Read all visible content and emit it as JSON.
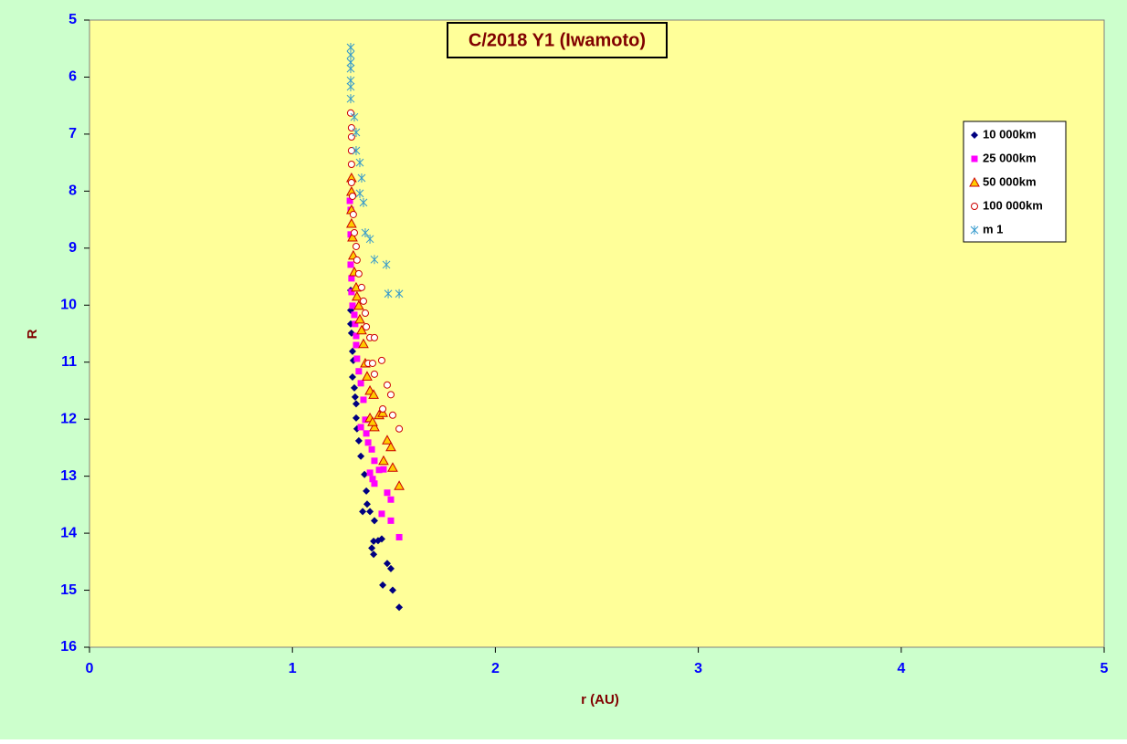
{
  "chart_data": {
    "type": "scatter",
    "title": "C/2018 Y1 (Iwamoto)",
    "x_label": "r (AU)",
    "y_label": "R",
    "xlim": [
      0,
      5
    ],
    "xticks": [
      0,
      1,
      2,
      3,
      4,
      5
    ],
    "ylim": [
      5,
      16
    ],
    "yticks": [
      5,
      6,
      7,
      8,
      9,
      10,
      11,
      12,
      13,
      14,
      15,
      16
    ],
    "y_inverted": true,
    "legend": "upper-right",
    "series": [
      {
        "name": "10 000km",
        "color": "#000080",
        "marker": "diamond",
        "x": [
          1.287,
          1.287,
          1.287,
          1.291,
          1.296,
          1.3,
          1.296,
          1.305,
          1.309,
          1.314,
          1.314,
          1.318,
          1.327,
          1.337,
          1.355,
          1.364,
          1.368,
          1.346,
          1.382,
          1.404,
          1.4,
          1.422,
          1.44,
          1.391,
          1.4,
          1.467,
          1.485,
          1.445,
          1.494,
          1.526
        ],
        "y": [
          9.74,
          10.09,
          10.33,
          10.49,
          10.81,
          10.97,
          11.26,
          11.45,
          11.61,
          11.73,
          11.98,
          12.17,
          12.38,
          12.65,
          12.97,
          13.26,
          13.49,
          13.62,
          13.62,
          13.78,
          14.14,
          14.13,
          14.1,
          14.26,
          14.37,
          14.53,
          14.62,
          14.91,
          15.0,
          15.3
        ]
      },
      {
        "name": "25 000km",
        "color": "#ff00ff",
        "marker": "square",
        "x": [
          1.283,
          1.287,
          1.287,
          1.287,
          1.291,
          1.291,
          1.296,
          1.305,
          1.309,
          1.314,
          1.314,
          1.318,
          1.327,
          1.337,
          1.35,
          1.359,
          1.337,
          1.364,
          1.373,
          1.391,
          1.404,
          1.382,
          1.395,
          1.404,
          1.427,
          1.449,
          1.467,
          1.485,
          1.44,
          1.485,
          1.526
        ],
        "y": [
          8.17,
          8.33,
          8.76,
          9.29,
          9.53,
          9.77,
          10.01,
          10.17,
          10.33,
          10.54,
          10.7,
          10.94,
          11.16,
          11.37,
          11.66,
          12.01,
          12.14,
          12.25,
          12.41,
          12.53,
          12.73,
          12.94,
          13.05,
          13.13,
          12.89,
          12.88,
          13.29,
          13.41,
          13.66,
          13.78,
          14.07
        ]
      },
      {
        "name": "50 000km",
        "color": "#cc0000",
        "fill": "#ffcc00",
        "marker": "triangle",
        "x": [
          1.291,
          1.291,
          1.291,
          1.291,
          1.296,
          1.3,
          1.305,
          1.314,
          1.318,
          1.327,
          1.332,
          1.341,
          1.35,
          1.359,
          1.368,
          1.382,
          1.4,
          1.382,
          1.404,
          1.395,
          1.427,
          1.445,
          1.467,
          1.485,
          1.449,
          1.494,
          1.526
        ],
        "y": [
          7.77,
          8.01,
          8.33,
          8.57,
          8.81,
          9.13,
          9.42,
          9.69,
          9.85,
          10.01,
          10.25,
          10.44,
          10.68,
          11.02,
          11.25,
          11.5,
          11.57,
          11.98,
          12.14,
          12.05,
          11.93,
          11.89,
          12.37,
          12.49,
          12.73,
          12.85,
          13.17
        ]
      },
      {
        "name": "100 000km",
        "color": "#cc0000",
        "fill": "#ffffff",
        "marker": "circle",
        "x": [
          1.287,
          1.291,
          1.291,
          1.291,
          1.291,
          1.291,
          1.296,
          1.3,
          1.305,
          1.314,
          1.318,
          1.327,
          1.341,
          1.35,
          1.359,
          1.364,
          1.382,
          1.404,
          1.373,
          1.395,
          1.404,
          1.44,
          1.467,
          1.485,
          1.445,
          1.494,
          1.526
        ],
        "y": [
          6.63,
          6.89,
          7.05,
          7.29,
          7.53,
          7.85,
          8.09,
          8.41,
          8.73,
          8.97,
          9.21,
          9.45,
          9.69,
          9.93,
          10.14,
          10.38,
          10.57,
          10.57,
          11.02,
          11.02,
          11.21,
          10.97,
          11.4,
          11.57,
          11.82,
          11.93,
          12.17
        ]
      },
      {
        "name": "m 1",
        "color": "#3399cc",
        "marker": "star",
        "x": [
          1.287,
          1.287,
          1.287,
          1.287,
          1.287,
          1.287,
          1.287,
          1.305,
          1.314,
          1.314,
          1.332,
          1.341,
          1.332,
          1.35,
          1.359,
          1.382,
          1.404,
          1.463,
          1.472,
          1.526
        ],
        "y": [
          5.48,
          5.61,
          5.74,
          5.85,
          6.06,
          6.17,
          6.38,
          6.7,
          6.97,
          7.29,
          7.5,
          7.77,
          8.04,
          8.2,
          8.73,
          8.84,
          9.2,
          9.29,
          9.8,
          9.8
        ]
      }
    ]
  }
}
